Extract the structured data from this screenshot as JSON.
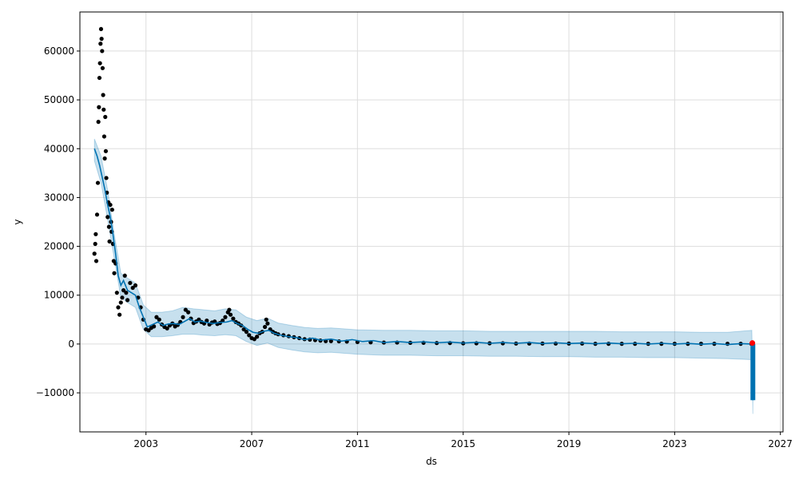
{
  "chart_data": {
    "type": "line",
    "title": "",
    "xlabel": "ds",
    "ylabel": "y",
    "xlim": [
      2000.5,
      2027.1
    ],
    "ylim": [
      -18000,
      68000
    ],
    "x_ticks": [
      {
        "value": 2003,
        "label": "2003"
      },
      {
        "value": 2007,
        "label": "2007"
      },
      {
        "value": 2011,
        "label": "2011"
      },
      {
        "value": 2015,
        "label": "2015"
      },
      {
        "value": 2019,
        "label": "2019"
      },
      {
        "value": 2023,
        "label": "2023"
      },
      {
        "value": 2027,
        "label": "2027"
      }
    ],
    "y_ticks": [
      {
        "value": -10000,
        "label": "−10000"
      },
      {
        "value": 0,
        "label": "0"
      },
      {
        "value": 10000,
        "label": "10000"
      },
      {
        "value": 20000,
        "label": "20000"
      },
      {
        "value": 30000,
        "label": "30000"
      },
      {
        "value": 40000,
        "label": "40000"
      },
      {
        "value": 50000,
        "label": "50000"
      },
      {
        "value": 60000,
        "label": "60000"
      }
    ],
    "grid": true,
    "colors": {
      "observed": "#000000",
      "forecast": "#0072B2",
      "interval": "#0072B2",
      "highlight": "#ff0000",
      "grid": "#dddddd"
    },
    "series": [
      {
        "kind": "observed",
        "points": [
          [
            2001.05,
            18500
          ],
          [
            2001.08,
            20500
          ],
          [
            2001.1,
            22500
          ],
          [
            2001.12,
            17000
          ],
          [
            2001.15,
            26500
          ],
          [
            2001.18,
            33000
          ],
          [
            2001.2,
            45500
          ],
          [
            2001.22,
            48500
          ],
          [
            2001.24,
            54500
          ],
          [
            2001.26,
            57500
          ],
          [
            2001.28,
            61500
          ],
          [
            2001.3,
            64500
          ],
          [
            2001.32,
            62500
          ],
          [
            2001.34,
            60000
          ],
          [
            2001.36,
            56500
          ],
          [
            2001.38,
            51000
          ],
          [
            2001.4,
            48000
          ],
          [
            2001.42,
            42500
          ],
          [
            2001.44,
            38000
          ],
          [
            2001.46,
            46500
          ],
          [
            2001.48,
            39500
          ],
          [
            2001.5,
            34000
          ],
          [
            2001.52,
            31000
          ],
          [
            2001.55,
            26000
          ],
          [
            2001.58,
            29000
          ],
          [
            2001.6,
            24000
          ],
          [
            2001.62,
            21000
          ],
          [
            2001.65,
            28500
          ],
          [
            2001.68,
            25000
          ],
          [
            2001.7,
            23000
          ],
          [
            2001.72,
            27500
          ],
          [
            2001.75,
            20500
          ],
          [
            2001.78,
            17000
          ],
          [
            2001.8,
            14500
          ],
          [
            2001.85,
            16500
          ],
          [
            2001.9,
            10500
          ],
          [
            2001.95,
            7500
          ],
          [
            2002.0,
            6000
          ],
          [
            2002.05,
            8500
          ],
          [
            2002.1,
            9500
          ],
          [
            2002.15,
            11000
          ],
          [
            2002.2,
            14000
          ],
          [
            2002.25,
            10500
          ],
          [
            2002.3,
            9000
          ],
          [
            2002.4,
            12500
          ],
          [
            2002.5,
            11500
          ],
          [
            2002.6,
            12000
          ],
          [
            2002.7,
            9500
          ],
          [
            2002.8,
            7500
          ],
          [
            2002.9,
            5000
          ],
          [
            2003.0,
            3000
          ],
          [
            2003.1,
            2800
          ],
          [
            2003.2,
            3300
          ],
          [
            2003.3,
            3600
          ],
          [
            2003.4,
            5500
          ],
          [
            2003.5,
            5000
          ],
          [
            2003.6,
            4000
          ],
          [
            2003.7,
            3500
          ],
          [
            2003.8,
            3200
          ],
          [
            2003.9,
            3800
          ],
          [
            2004.0,
            4200
          ],
          [
            2004.1,
            3600
          ],
          [
            2004.2,
            3900
          ],
          [
            2004.3,
            4500
          ],
          [
            2004.4,
            5500
          ],
          [
            2004.5,
            7000
          ],
          [
            2004.6,
            6500
          ],
          [
            2004.7,
            5200
          ],
          [
            2004.8,
            4300
          ],
          [
            2004.9,
            4600
          ],
          [
            2005.0,
            5000
          ],
          [
            2005.1,
            4500
          ],
          [
            2005.2,
            4200
          ],
          [
            2005.3,
            4800
          ],
          [
            2005.4,
            4000
          ],
          [
            2005.5,
            4400
          ],
          [
            2005.6,
            4600
          ],
          [
            2005.7,
            4100
          ],
          [
            2005.8,
            4300
          ],
          [
            2005.9,
            4800
          ],
          [
            2006.0,
            5500
          ],
          [
            2006.1,
            6500
          ],
          [
            2006.15,
            7000
          ],
          [
            2006.2,
            6000
          ],
          [
            2006.3,
            5200
          ],
          [
            2006.4,
            4500
          ],
          [
            2006.5,
            4200
          ],
          [
            2006.6,
            3800
          ],
          [
            2006.7,
            3000
          ],
          [
            2006.8,
            2500
          ],
          [
            2006.9,
            1800
          ],
          [
            2007.0,
            1200
          ],
          [
            2007.1,
            1000
          ],
          [
            2007.2,
            1500
          ],
          [
            2007.3,
            2200
          ],
          [
            2007.4,
            2500
          ],
          [
            2007.5,
            3500
          ],
          [
            2007.55,
            5000
          ],
          [
            2007.6,
            4200
          ],
          [
            2007.7,
            3000
          ],
          [
            2007.8,
            2500
          ],
          [
            2007.9,
            2200
          ],
          [
            2008.0,
            2000
          ],
          [
            2008.2,
            1800
          ],
          [
            2008.4,
            1600
          ],
          [
            2008.6,
            1400
          ],
          [
            2008.8,
            1200
          ],
          [
            2009.0,
            1000
          ],
          [
            2009.2,
            900
          ],
          [
            2009.4,
            800
          ],
          [
            2009.6,
            700
          ],
          [
            2009.8,
            600
          ],
          [
            2010.0,
            600
          ],
          [
            2010.3,
            550
          ],
          [
            2010.6,
            500
          ],
          [
            2011.0,
            400
          ],
          [
            2011.5,
            350
          ],
          [
            2012.0,
            300
          ],
          [
            2012.5,
            300
          ],
          [
            2013.0,
            250
          ],
          [
            2013.5,
            250
          ],
          [
            2014.0,
            200
          ],
          [
            2014.5,
            200
          ],
          [
            2015.0,
            150
          ],
          [
            2015.5,
            150
          ],
          [
            2016.0,
            150
          ],
          [
            2016.5,
            150
          ],
          [
            2017.0,
            100
          ],
          [
            2017.5,
            100
          ],
          [
            2018.0,
            100
          ],
          [
            2018.5,
            100
          ],
          [
            2019.0,
            100
          ],
          [
            2019.5,
            100
          ],
          [
            2020.0,
            50
          ],
          [
            2020.5,
            50
          ],
          [
            2021.0,
            50
          ],
          [
            2021.5,
            50
          ],
          [
            2022.0,
            50
          ],
          [
            2022.5,
            50
          ],
          [
            2023.0,
            50
          ],
          [
            2023.5,
            50
          ],
          [
            2024.0,
            50
          ],
          [
            2024.5,
            50
          ],
          [
            2025.0,
            50
          ],
          [
            2025.5,
            50
          ],
          [
            2025.9,
            50
          ]
        ]
      },
      {
        "kind": "forecast",
        "points": [
          [
            2001.05,
            40000
          ],
          [
            2001.15,
            38500
          ],
          [
            2001.25,
            36500
          ],
          [
            2001.35,
            34000
          ],
          [
            2001.45,
            31500
          ],
          [
            2001.55,
            28500
          ],
          [
            2001.65,
            26000
          ],
          [
            2001.75,
            22500
          ],
          [
            2001.85,
            18500
          ],
          [
            2001.95,
            14000
          ],
          [
            2002.05,
            12000
          ],
          [
            2002.15,
            13000
          ],
          [
            2002.3,
            11000
          ],
          [
            2002.45,
            10500
          ],
          [
            2002.6,
            10000
          ],
          [
            2002.75,
            7500
          ],
          [
            2002.9,
            5500
          ],
          [
            2003.05,
            3500
          ],
          [
            2003.25,
            4000
          ],
          [
            2003.45,
            4500
          ],
          [
            2003.65,
            3800
          ],
          [
            2003.85,
            4100
          ],
          [
            2004.05,
            4200
          ],
          [
            2004.25,
            4000
          ],
          [
            2004.45,
            4600
          ],
          [
            2004.65,
            5200
          ],
          [
            2004.85,
            4500
          ],
          [
            2005.05,
            4700
          ],
          [
            2005.3,
            4400
          ],
          [
            2005.55,
            4200
          ],
          [
            2005.8,
            4400
          ],
          [
            2006.05,
            4500
          ],
          [
            2006.25,
            4800
          ],
          [
            2006.45,
            4200
          ],
          [
            2006.65,
            3800
          ],
          [
            2006.85,
            3000
          ],
          [
            2007.05,
            2400
          ],
          [
            2007.25,
            2200
          ],
          [
            2007.45,
            2600
          ],
          [
            2007.65,
            2800
          ],
          [
            2007.85,
            2200
          ],
          [
            2008.1,
            1800
          ],
          [
            2008.4,
            1500
          ],
          [
            2008.7,
            1300
          ],
          [
            2009.0,
            900
          ],
          [
            2009.3,
            1200
          ],
          [
            2009.6,
            800
          ],
          [
            2010.0,
            1000
          ],
          [
            2010.4,
            600
          ],
          [
            2010.8,
            900
          ],
          [
            2011.2,
            500
          ],
          [
            2011.6,
            700
          ],
          [
            2012.0,
            300
          ],
          [
            2012.5,
            500
          ],
          [
            2013.0,
            300
          ],
          [
            2013.5,
            450
          ],
          [
            2014.0,
            250
          ],
          [
            2014.5,
            400
          ],
          [
            2015.0,
            200
          ],
          [
            2015.5,
            350
          ],
          [
            2016.0,
            150
          ],
          [
            2016.5,
            300
          ],
          [
            2017.0,
            150
          ],
          [
            2017.5,
            300
          ],
          [
            2018.0,
            100
          ],
          [
            2018.5,
            250
          ],
          [
            2019.0,
            100
          ],
          [
            2019.5,
            200
          ],
          [
            2020.0,
            50
          ],
          [
            2020.5,
            200
          ],
          [
            2021.0,
            50
          ],
          [
            2021.5,
            150
          ],
          [
            2022.0,
            0
          ],
          [
            2022.5,
            150
          ],
          [
            2023.0,
            0
          ],
          [
            2023.5,
            120
          ],
          [
            2024.0,
            -50
          ],
          [
            2024.5,
            100
          ],
          [
            2025.0,
            -100
          ],
          [
            2025.5,
            80
          ],
          [
            2025.92,
            0
          ],
          [
            2025.93,
            -3000
          ],
          [
            2025.94,
            -6000
          ],
          [
            2025.95,
            -9000
          ],
          [
            2025.96,
            -11500
          ]
        ]
      },
      {
        "kind": "uncertainty_band",
        "points": [
          [
            2001.05,
            37500,
            42000
          ],
          [
            2001.3,
            33000,
            38500
          ],
          [
            2001.55,
            25500,
            31500
          ],
          [
            2001.8,
            17500,
            22500
          ],
          [
            2002.05,
            9500,
            14500
          ],
          [
            2002.3,
            8500,
            13500
          ],
          [
            2002.6,
            7500,
            12500
          ],
          [
            2002.9,
            3000,
            8000
          ],
          [
            2003.2,
            1500,
            6500
          ],
          [
            2003.6,
            1500,
            6500
          ],
          [
            2004.0,
            1700,
            6800
          ],
          [
            2004.4,
            2000,
            7500
          ],
          [
            2004.8,
            2000,
            7200
          ],
          [
            2005.2,
            1800,
            7000
          ],
          [
            2005.6,
            1700,
            6800
          ],
          [
            2006.0,
            1900,
            7200
          ],
          [
            2006.4,
            1700,
            7000
          ],
          [
            2006.8,
            500,
            5500
          ],
          [
            2007.2,
            -300,
            4800
          ],
          [
            2007.6,
            200,
            5300
          ],
          [
            2008.0,
            -700,
            4300
          ],
          [
            2008.5,
            -1200,
            3800
          ],
          [
            2009.0,
            -1600,
            3400
          ],
          [
            2009.5,
            -1800,
            3200
          ],
          [
            2010.0,
            -1700,
            3300
          ],
          [
            2011.0,
            -2100,
            2900
          ],
          [
            2012.0,
            -2300,
            2800
          ],
          [
            2013.0,
            -2300,
            2800
          ],
          [
            2014.0,
            -2400,
            2700
          ],
          [
            2015.0,
            -2400,
            2700
          ],
          [
            2016.0,
            -2500,
            2600
          ],
          [
            2017.0,
            -2500,
            2600
          ],
          [
            2018.0,
            -2600,
            2600
          ],
          [
            2019.0,
            -2600,
            2600
          ],
          [
            2020.0,
            -2700,
            2600
          ],
          [
            2021.0,
            -2700,
            2500
          ],
          [
            2022.0,
            -2800,
            2500
          ],
          [
            2023.0,
            -2800,
            2500
          ],
          [
            2024.0,
            -2900,
            2400
          ],
          [
            2025.0,
            -3000,
            2400
          ],
          [
            2025.92,
            -3200,
            2800
          ],
          [
            2025.96,
            -14300,
            -8800
          ]
        ]
      },
      {
        "kind": "highlight",
        "points": [
          [
            2025.94,
            200
          ]
        ]
      }
    ]
  }
}
